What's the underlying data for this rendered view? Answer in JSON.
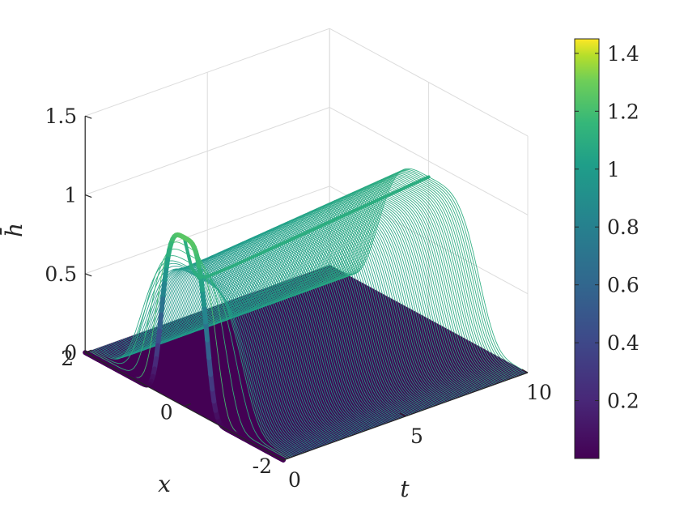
{
  "chart_data": {
    "type": "surface",
    "xlabel": "t",
    "ylabel": "x",
    "zlabel": "h̄",
    "xlim": [
      0,
      10
    ],
    "ylim": [
      -2,
      2
    ],
    "zlim": [
      0,
      1.5
    ],
    "x_ticks": [
      "0",
      "5",
      "10"
    ],
    "y_ticks": [
      "-2",
      "0",
      "2"
    ],
    "z_ticks": [
      "0",
      "0.5",
      "1",
      "1.5"
    ],
    "colorbar": {
      "colormap": "viridis",
      "range": [
        0,
        1.45
      ],
      "ticks": [
        "0.2",
        "0.4",
        "0.6",
        "0.8",
        "1",
        "1.2",
        "1.4"
      ],
      "tick_values": [
        0.2,
        0.4,
        0.6,
        0.8,
        1.0,
        1.2,
        1.4
      ]
    },
    "series": [
      {
        "peak_height_initial": 1.07,
        "peak_time_initial": 0,
        "plateau_height_final": 0.9,
        "profile_width_x": 1.1,
        "t_samples": [
          0,
          0.3,
          0.6,
          1,
          2,
          4,
          6,
          8,
          10
        ],
        "peak_height_samples": [
          1.07,
          0.86,
          0.78,
          0.77,
          0.78,
          0.81,
          0.84,
          0.87,
          0.9
        ]
      }
    ],
    "grid": true,
    "view": "3d-perspective"
  }
}
